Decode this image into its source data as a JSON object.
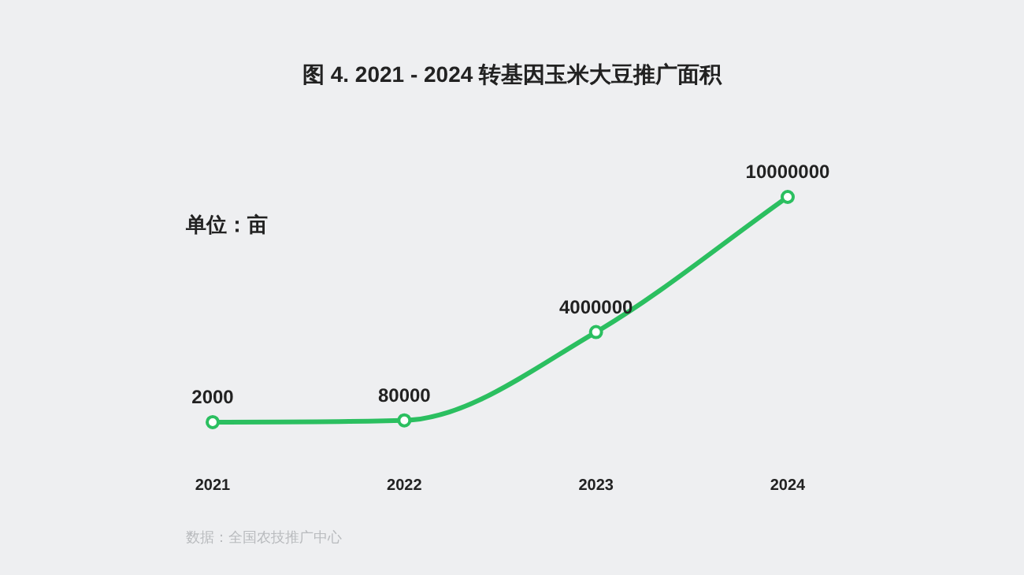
{
  "chart_data": {
    "type": "line",
    "title": "图 4. 2021 - 2024 转基因玉米大豆推广面积",
    "annotations": [
      "单位：亩",
      "数据：全国农技推广中心"
    ],
    "categories": [
      "2021",
      "2022",
      "2023",
      "2024"
    ],
    "series": [
      {
        "color": "#2bbf60",
        "values": [
          2000,
          80000,
          4000000,
          10000000
        ]
      }
    ],
    "data_labels": true,
    "marker": "circle",
    "grid": false
  }
}
